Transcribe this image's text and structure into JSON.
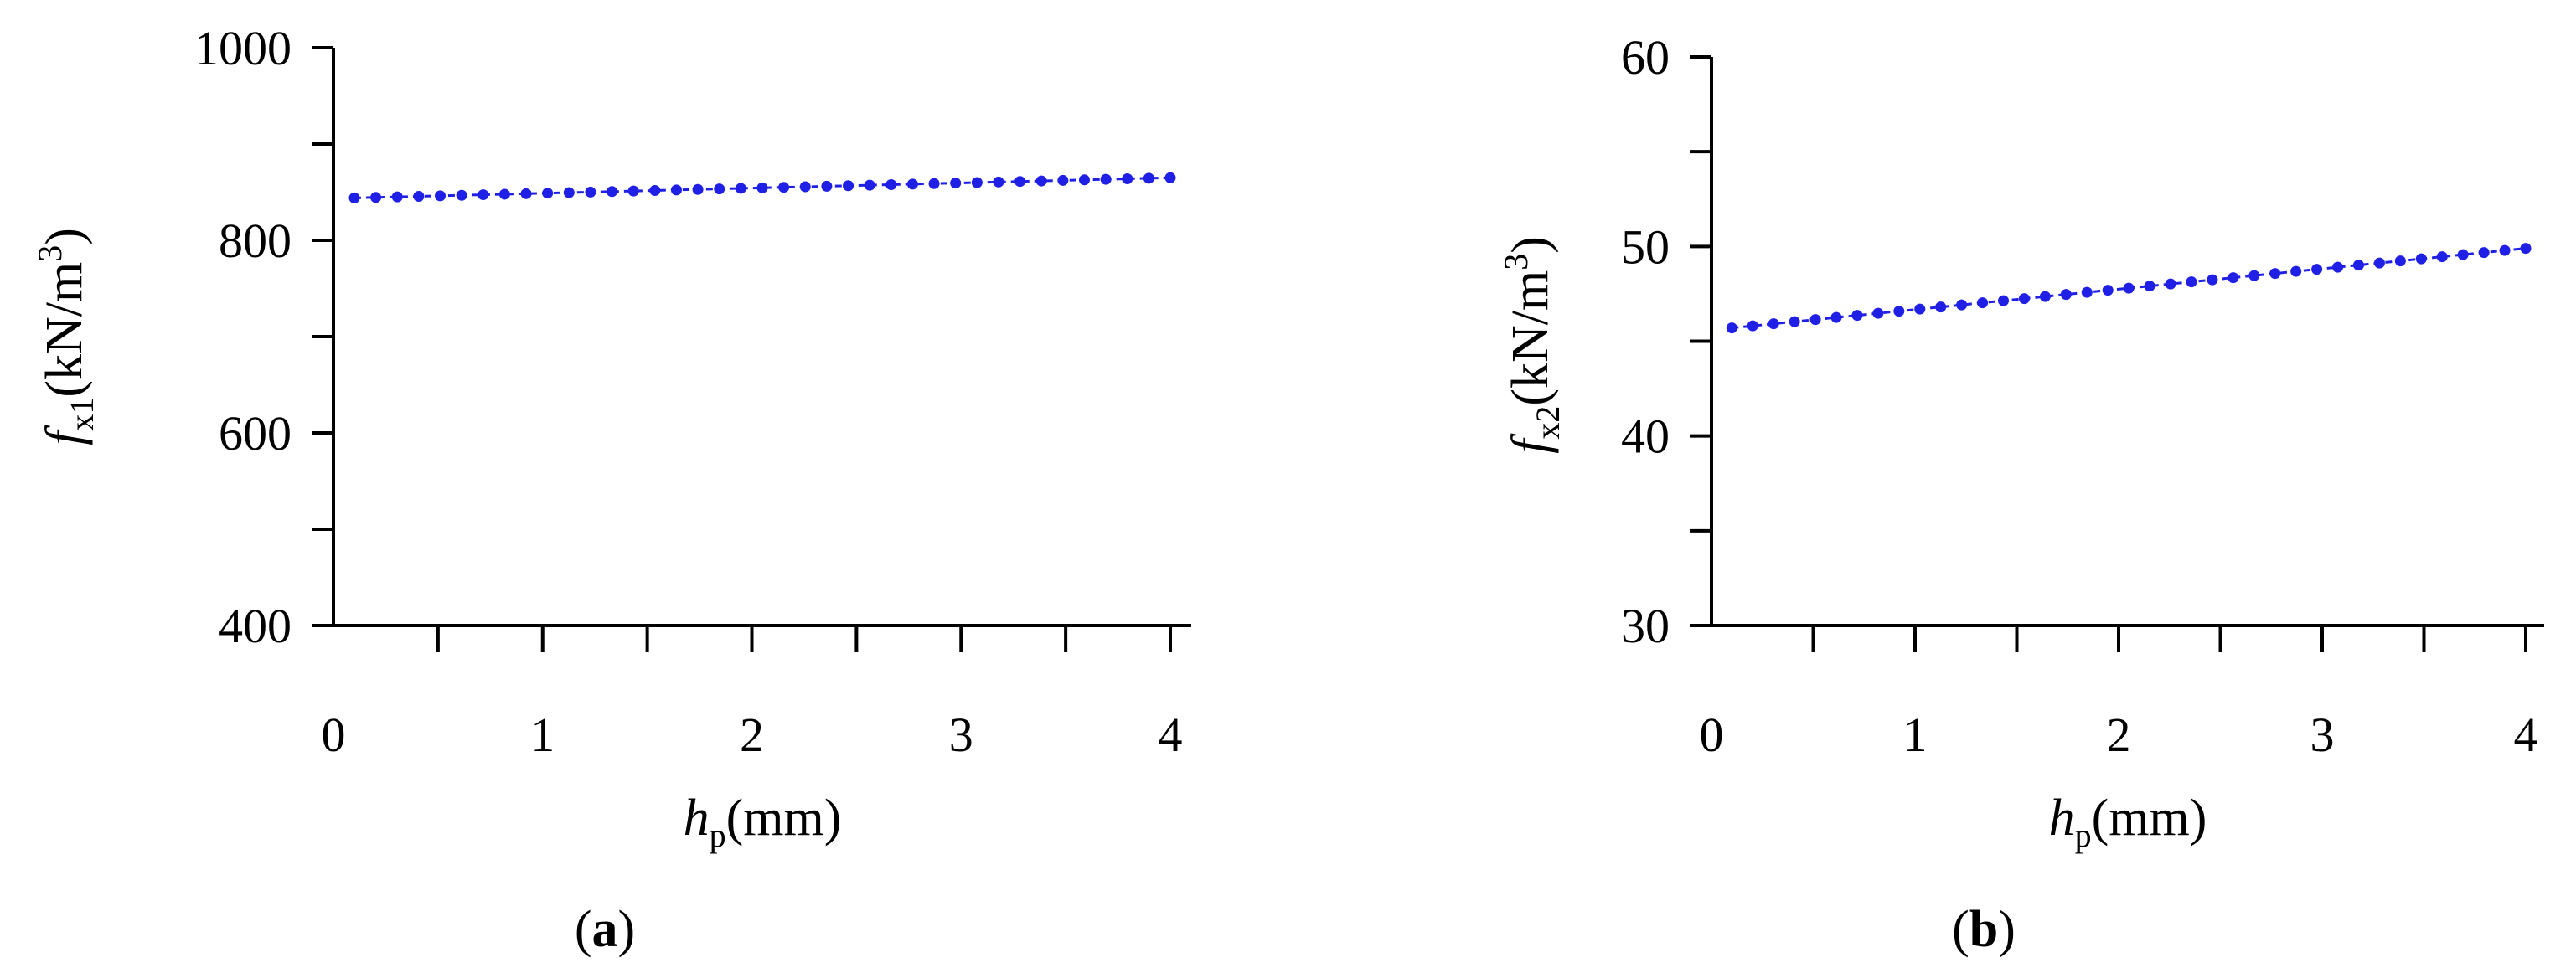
{
  "chart_data": [
    {
      "type": "line",
      "panel_label": {
        "open": "(",
        "letter": "a",
        "close": ")"
      },
      "xlabel": {
        "symbol": "h",
        "subscript": "p",
        "unit": "(mm)"
      },
      "ylabel": {
        "symbol": "f",
        "subscript": "x1",
        "unit": "(kN/m",
        "sup": "3",
        "close": ")"
      },
      "xlim": [
        0,
        4
      ],
      "ylim": [
        400,
        1000
      ],
      "xticks": [
        0,
        1,
        2,
        3,
        4
      ],
      "yticks": [
        400,
        600,
        800,
        1000
      ],
      "series": [
        {
          "color": "#1f1fe6",
          "x": [
            0.1,
            4.0
          ],
          "y": [
            844,
            865
          ],
          "points": 39
        }
      ]
    },
    {
      "type": "line",
      "panel_label": {
        "open": "(",
        "letter": "b",
        "close": ")"
      },
      "xlabel": {
        "symbol": "h",
        "subscript": "p",
        "unit": "(mm)"
      },
      "ylabel": {
        "symbol": "f",
        "subscript": "x2",
        "unit": "(kN/m",
        "sup": "3",
        "close": ")"
      },
      "xlim": [
        0,
        4
      ],
      "ylim": [
        30,
        60
      ],
      "xticks": [
        0,
        1,
        2,
        3,
        4
      ],
      "yticks": [
        30,
        40,
        50,
        60
      ],
      "series": [
        {
          "color": "#1f1fe6",
          "x": [
            0.1,
            4.0
          ],
          "y": [
            45.7,
            49.9
          ],
          "points": 39
        }
      ]
    }
  ]
}
